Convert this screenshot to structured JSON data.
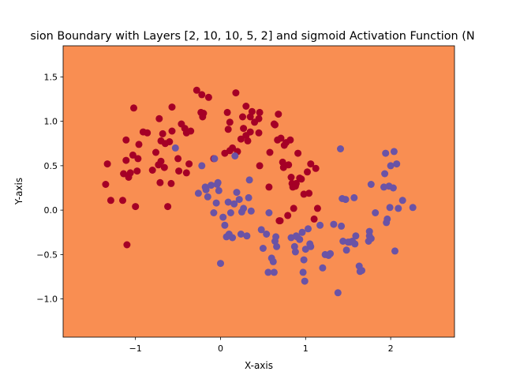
{
  "chart_data": {
    "type": "scatter",
    "title": "sion Boundary with Layers [2, 10, 10, 5, 2] and sigmoid Activation Function (N",
    "xlabel": "X-axis",
    "ylabel": "Y-axis",
    "xlim": [
      -1.85,
      2.75
    ],
    "ylim": [
      -1.43,
      1.85
    ],
    "xticks": [
      -1,
      0,
      1,
      2
    ],
    "xtick_labels": [
      "−1",
      "0",
      "1",
      "2"
    ],
    "yticks": [
      -1.0,
      -0.5,
      0.0,
      0.5,
      1.0,
      1.5
    ],
    "ytick_labels": [
      "−1.0",
      "−0.5",
      "0.0",
      "0.5",
      "1.0",
      "1.5"
    ],
    "grid": false,
    "legend": "none",
    "background_region": {
      "description": "decision region",
      "color": "#f98e52"
    },
    "series": [
      {
        "color": "#a50026",
        "points": [
          [
            -1.35,
            0.29
          ],
          [
            -1.33,
            0.52
          ],
          [
            -1.29,
            0.11
          ],
          [
            -1.15,
            0.11
          ],
          [
            -1.14,
            0.41
          ],
          [
            -1.11,
            0.56
          ],
          [
            -1.11,
            0.79
          ],
          [
            -1.1,
            -0.39
          ],
          [
            -1.08,
            0.37
          ],
          [
            -1.06,
            0.42
          ],
          [
            -1.03,
            0.62
          ],
          [
            -1.02,
            1.15
          ],
          [
            -1.0,
            0.04
          ],
          [
            -0.98,
            0.44
          ],
          [
            -0.97,
            0.58
          ],
          [
            -0.96,
            0.74
          ],
          [
            -0.91,
            0.88
          ],
          [
            -0.86,
            0.87
          ],
          [
            -0.8,
            0.45
          ],
          [
            -0.76,
            0.65
          ],
          [
            -0.73,
            0.51
          ],
          [
            -0.72,
            1.03
          ],
          [
            -0.71,
            0.31
          ],
          [
            -0.7,
            0.78
          ],
          [
            -0.7,
            0.55
          ],
          [
            -0.68,
            0.86
          ],
          [
            -0.66,
            0.48
          ],
          [
            -0.65,
            0.75
          ],
          [
            -0.62,
            0.04
          ],
          [
            -0.6,
            0.77
          ],
          [
            -0.58,
            0.3
          ],
          [
            -0.57,
            0.89
          ],
          [
            -0.57,
            1.16
          ],
          [
            -0.5,
            0.58
          ],
          [
            -0.49,
            0.44
          ],
          [
            -0.46,
            0.97
          ],
          [
            -0.42,
            0.92
          ],
          [
            -0.4,
            0.42
          ],
          [
            -0.4,
            0.87
          ],
          [
            -0.37,
            0.52
          ],
          [
            -0.35,
            0.89
          ],
          [
            -0.28,
            1.35
          ],
          [
            -0.23,
            1.1
          ],
          [
            -0.22,
            1.3
          ],
          [
            -0.21,
            1.05
          ],
          [
            -0.2,
            1.09
          ],
          [
            -0.14,
            1.27
          ],
          [
            -0.08,
            0.58
          ],
          [
            0.05,
            0.64
          ],
          [
            0.08,
            1.1
          ],
          [
            0.09,
            0.91
          ],
          [
            0.11,
            0.67
          ],
          [
            0.11,
            0.99
          ],
          [
            0.14,
            0.7
          ],
          [
            0.18,
            1.32
          ],
          [
            0.2,
            0.66
          ],
          [
            0.24,
            0.8
          ],
          [
            0.26,
            1.05
          ],
          [
            0.27,
            0.92
          ],
          [
            0.3,
            0.84
          ],
          [
            0.3,
            1.17
          ],
          [
            0.32,
            0.78
          ],
          [
            0.35,
            0.88
          ],
          [
            0.35,
            1.05
          ],
          [
            0.37,
            1.11
          ],
          [
            0.4,
            0.99
          ],
          [
            0.45,
            1.03
          ],
          [
            0.45,
            0.87
          ],
          [
            0.46,
            1.1
          ],
          [
            0.46,
            0.5
          ],
          [
            0.57,
            0.26
          ],
          [
            0.58,
            0.65
          ],
          [
            0.63,
            0.97
          ],
          [
            0.64,
            0.96
          ],
          [
            0.67,
            0.79
          ],
          [
            0.68,
            1.08
          ],
          [
            0.69,
            -0.12
          ],
          [
            0.7,
            -0.12
          ],
          [
            0.71,
            0.81
          ],
          [
            0.73,
            0.54
          ],
          [
            0.74,
            0.48
          ],
          [
            0.75,
            0.73
          ],
          [
            0.77,
            0.76
          ],
          [
            0.79,
            -0.06
          ],
          [
            0.8,
            0.51
          ],
          [
            0.82,
            0.79
          ],
          [
            0.83,
            0.37
          ],
          [
            0.84,
            0.3
          ],
          [
            0.85,
            0.26
          ],
          [
            0.86,
            0.02
          ],
          [
            0.88,
            0.27
          ],
          [
            0.89,
            0.3
          ],
          [
            0.91,
            0.64
          ],
          [
            0.93,
            0.36
          ],
          [
            0.95,
            0.35
          ],
          [
            0.98,
            0.18
          ],
          [
            1.02,
            0.43
          ],
          [
            1.04,
            0.19
          ],
          [
            1.06,
            0.52
          ],
          [
            1.1,
            -0.1
          ],
          [
            1.12,
            0.47
          ],
          [
            1.14,
            0.02
          ]
        ]
      },
      {
        "color": "#6a53a6",
        "points": [
          [
            -0.53,
            0.7
          ],
          [
            -0.26,
            0.19
          ],
          [
            -0.22,
            0.5
          ],
          [
            -0.18,
            0.26
          ],
          [
            -0.17,
            0.23
          ],
          [
            -0.15,
            0.15
          ],
          [
            -0.11,
            0.28
          ],
          [
            -0.08,
            -0.03
          ],
          [
            -0.07,
            0.58
          ],
          [
            -0.05,
            0.08
          ],
          [
            -0.04,
            0.29
          ],
          [
            -0.03,
            0.31
          ],
          [
            -0.02,
            0.22
          ],
          [
            0.0,
            -0.6
          ],
          [
            0.03,
            -0.08
          ],
          [
            0.05,
            -0.17
          ],
          [
            0.07,
            -0.3
          ],
          [
            0.09,
            0.09
          ],
          [
            0.1,
            -0.27
          ],
          [
            0.12,
            -0.03
          ],
          [
            0.14,
            -0.31
          ],
          [
            0.16,
            0.07
          ],
          [
            0.17,
            0.61
          ],
          [
            0.19,
            0.2
          ],
          [
            0.22,
            0.12
          ],
          [
            0.24,
            -0.27
          ],
          [
            0.25,
            -0.02
          ],
          [
            0.27,
            0.02
          ],
          [
            0.31,
            -0.29
          ],
          [
            0.33,
            0.14
          ],
          [
            0.34,
            0.34
          ],
          [
            0.36,
            -0.01
          ],
          [
            0.48,
            -0.22
          ],
          [
            0.5,
            -0.43
          ],
          [
            0.54,
            -0.27
          ],
          [
            0.56,
            -0.7
          ],
          [
            0.57,
            -0.03
          ],
          [
            0.6,
            -0.54
          ],
          [
            0.62,
            -0.58
          ],
          [
            0.63,
            -0.7
          ],
          [
            0.64,
            -0.35
          ],
          [
            0.65,
            -0.3
          ],
          [
            0.66,
            -0.41
          ],
          [
            0.83,
            -0.31
          ],
          [
            0.87,
            -0.41
          ],
          [
            0.88,
            -0.47
          ],
          [
            0.89,
            -0.29
          ],
          [
            0.9,
            -0.3
          ],
          [
            0.93,
            -0.33
          ],
          [
            0.96,
            -0.25
          ],
          [
            0.97,
            -0.7
          ],
          [
            0.98,
            -0.56
          ],
          [
            0.99,
            -0.8
          ],
          [
            1.0,
            -0.44
          ],
          [
            1.03,
            -0.21
          ],
          [
            1.05,
            -0.38
          ],
          [
            1.06,
            -0.41
          ],
          [
            1.17,
            -0.17
          ],
          [
            1.2,
            -0.65
          ],
          [
            1.23,
            -0.5
          ],
          [
            1.27,
            -0.51
          ],
          [
            1.29,
            -0.49
          ],
          [
            1.33,
            -0.16
          ],
          [
            1.38,
            -0.93
          ],
          [
            1.41,
            0.69
          ],
          [
            1.42,
            -0.18
          ],
          [
            1.43,
            0.13
          ],
          [
            1.44,
            -0.35
          ],
          [
            1.47,
            0.12
          ],
          [
            1.48,
            -0.45
          ],
          [
            1.5,
            -0.36
          ],
          [
            1.52,
            -0.36
          ],
          [
            1.55,
            -0.35
          ],
          [
            1.57,
            0.14
          ],
          [
            1.58,
            -0.38
          ],
          [
            1.59,
            -0.29
          ],
          [
            1.63,
            -0.63
          ],
          [
            1.64,
            -0.69
          ],
          [
            1.66,
            -0.68
          ],
          [
            1.74,
            -0.35
          ],
          [
            1.75,
            -0.24
          ],
          [
            1.75,
            -0.29
          ],
          [
            1.77,
            -0.32
          ],
          [
            1.77,
            0.29
          ],
          [
            1.82,
            -0.03
          ],
          [
            1.92,
            0.26
          ],
          [
            1.93,
            0.41
          ],
          [
            1.94,
            0.64
          ],
          [
            1.95,
            -0.14
          ],
          [
            1.96,
            -0.1
          ],
          [
            1.98,
            0.27
          ],
          [
            1.99,
            0.03
          ],
          [
            2.0,
            0.5
          ],
          [
            2.03,
            0.25
          ],
          [
            2.04,
            0.66
          ],
          [
            2.05,
            -0.46
          ],
          [
            2.07,
            0.52
          ],
          [
            2.09,
            0.02
          ],
          [
            2.14,
            0.11
          ],
          [
            2.26,
            0.03
          ]
        ]
      }
    ]
  }
}
